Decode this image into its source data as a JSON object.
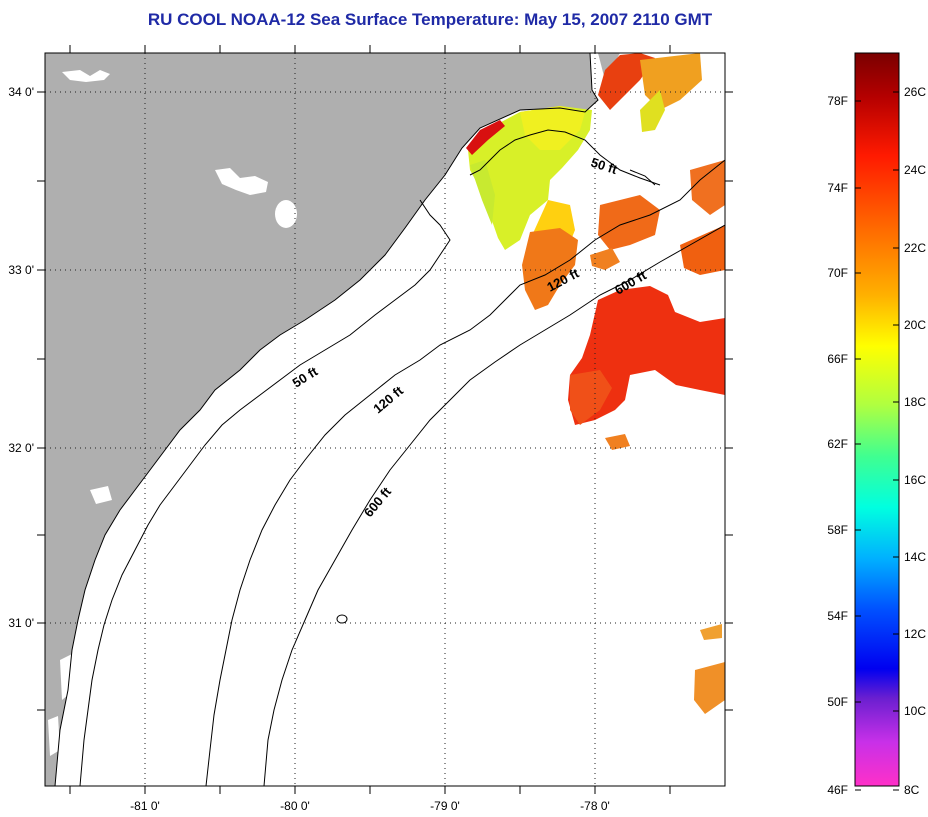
{
  "title": "RU COOL  NOAA-12  Sea Surface Temperature:  May 15, 2007 2110 GMT",
  "colors": {
    "land": "#afafaf",
    "title": "#1f2aa6",
    "water": "#ffffff"
  },
  "map": {
    "lon_labels": [
      "-81 0'",
      "-80 0'",
      "-79 0'",
      "-78 0'"
    ],
    "lat_labels": [
      "34 0'",
      "33 0'",
      "32 0'",
      "31 0'"
    ],
    "contour_labels": {
      "c50_north": "50 ft",
      "c50_south": "50 ft",
      "c120_north": "120 ft",
      "c120_south": "120 ft",
      "c600_north": "600 ft",
      "c600_south": "600 ft"
    }
  },
  "colorbar": {
    "fahrenheit": [
      "78F",
      "74F",
      "70F",
      "66F",
      "62F",
      "58F",
      "54F",
      "50F",
      "46F"
    ],
    "celsius": [
      "26C",
      "24C",
      "22C",
      "20C",
      "18C",
      "16C",
      "14C",
      "12C",
      "10C",
      "8C"
    ]
  }
}
